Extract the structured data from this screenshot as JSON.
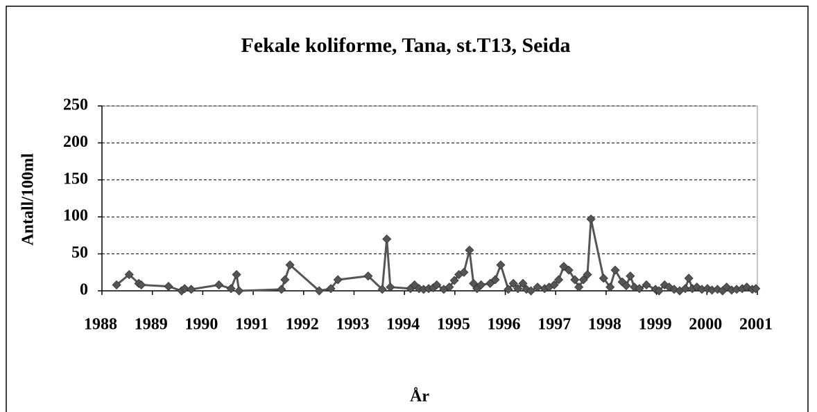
{
  "chart_data": {
    "type": "line",
    "title": "Fekale koliforme, Tana, st.T13, Seida",
    "x_label": "År",
    "y_label": "Antall/100ml",
    "xlim": [
      1988,
      2001
    ],
    "xticks": [
      1988,
      1989,
      1990,
      1991,
      1992,
      1993,
      1994,
      1995,
      1996,
      1997,
      1998,
      1999,
      2000,
      2001
    ],
    "ylim": [
      0,
      250
    ],
    "yticks": [
      0,
      50,
      100,
      150,
      200,
      250
    ],
    "grid": true,
    "series": [
      {
        "color": "#555555",
        "x": [
          1988.29,
          1988.54,
          1988.73,
          1988.78,
          1989.32,
          1989.58,
          1989.64,
          1989.77,
          1990.32,
          1990.56,
          1990.67,
          1990.72,
          1991.56,
          1991.63,
          1991.73,
          1992.31,
          1992.54,
          1992.68,
          1993.28,
          1993.56,
          1993.65,
          1993.72,
          1994.12,
          1994.2,
          1994.29,
          1994.38,
          1994.48,
          1994.57,
          1994.64,
          1994.78,
          1994.89,
          1994.99,
          1995.08,
          1995.18,
          1995.29,
          1995.37,
          1995.44,
          1995.52,
          1995.7,
          1995.8,
          1995.91,
          1996.06,
          1996.16,
          1996.25,
          1996.35,
          1996.42,
          1996.51,
          1996.64,
          1996.78,
          1996.87,
          1996.97,
          1997.06,
          1997.16,
          1997.26,
          1997.38,
          1997.46,
          1997.55,
          1997.63,
          1997.7,
          1997.95,
          1998.08,
          1998.18,
          1998.32,
          1998.4,
          1998.48,
          1998.56,
          1998.66,
          1998.8,
          1998.98,
          1999.05,
          1999.16,
          1999.25,
          1999.35,
          1999.46,
          1999.57,
          1999.64,
          1999.71,
          1999.8,
          1999.9,
          2000.01,
          2000.1,
          2000.21,
          2000.31,
          2000.39,
          2000.49,
          2000.59,
          2000.7,
          2000.79,
          2000.9,
          2000.97
        ],
        "values": [
          8,
          22,
          10,
          8,
          6,
          0,
          3,
          2,
          8,
          3,
          22,
          0,
          2,
          15,
          35,
          0,
          3,
          15,
          20,
          2,
          70,
          5,
          3,
          8,
          3,
          2,
          3,
          4,
          8,
          2,
          5,
          14,
          22,
          25,
          55,
          10,
          3,
          8,
          10,
          15,
          35,
          2,
          10,
          3,
          10,
          2,
          0,
          5,
          3,
          5,
          8,
          15,
          33,
          28,
          15,
          5,
          15,
          22,
          97,
          17,
          5,
          28,
          12,
          7,
          20,
          5,
          3,
          8,
          2,
          0,
          8,
          5,
          2,
          0,
          3,
          17,
          3,
          5,
          2,
          3,
          1,
          2,
          0,
          5,
          1,
          2,
          3,
          5,
          2,
          3
        ]
      }
    ]
  }
}
